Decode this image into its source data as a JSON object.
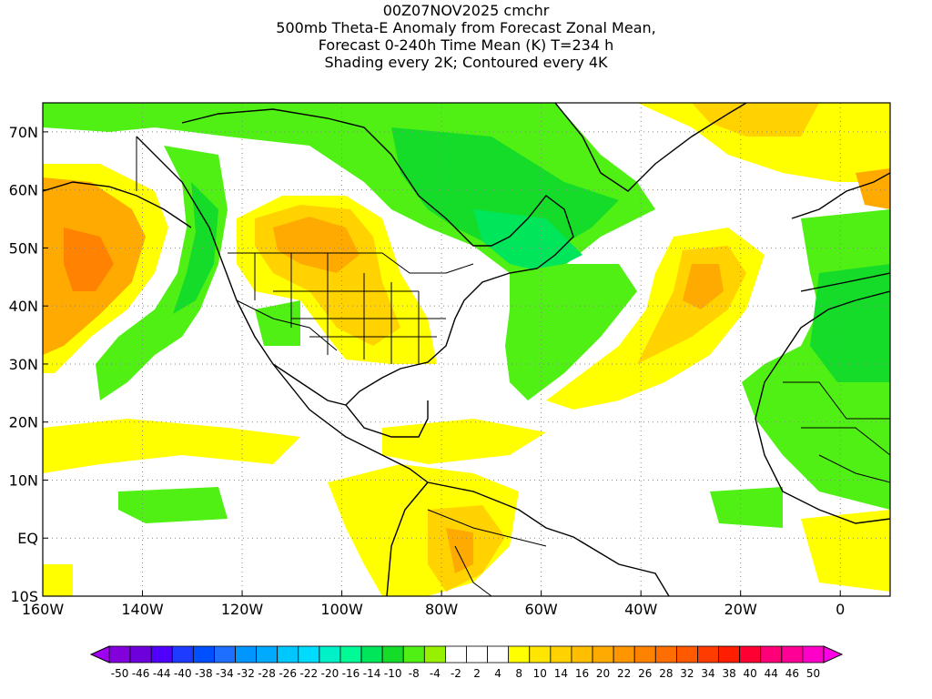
{
  "titles": {
    "line1": "00Z07NOV2025 cmchr",
    "line2": "500mb Theta-E Anomaly from Forecast Zonal Mean,",
    "line3": "Forecast 0-240h Time Mean (K) T=234 h",
    "line4": "Shading every 2K; Contoured every 4K"
  },
  "axes": {
    "lat_labels": [
      "70N",
      "60N",
      "50N",
      "40N",
      "30N",
      "20N",
      "10N",
      "EQ",
      "10S"
    ],
    "lat_values": [
      70,
      60,
      50,
      40,
      30,
      20,
      10,
      0,
      -10
    ],
    "lon_labels": [
      "160W",
      "140W",
      "120W",
      "100W",
      "80W",
      "60W",
      "40W",
      "20W",
      "0"
    ],
    "lon_values": [
      -160,
      -140,
      -120,
      -100,
      -80,
      -60,
      -40,
      -20,
      0
    ],
    "lon_range": [
      -160,
      10
    ],
    "lat_range": [
      -10,
      75
    ],
    "grid": "dotted"
  },
  "colorbar": {
    "labels": [
      "-50",
      "-46",
      "-44",
      "-40",
      "-38",
      "-34",
      "-32",
      "-28",
      "-26",
      "-22",
      "-20",
      "-16",
      "-14",
      "-10",
      "-8",
      "-4",
      "-2",
      "2",
      "4",
      "8",
      "10",
      "14",
      "16",
      "20",
      "22",
      "26",
      "28",
      "32",
      "34",
      "38",
      "40",
      "44",
      "46",
      "50"
    ],
    "colors": [
      "#a000f0",
      "#8200dc",
      "#6e00dc",
      "#5000ff",
      "#1e3cff",
      "#0050ff",
      "#1e6eff",
      "#0096ff",
      "#00aaff",
      "#00c8ff",
      "#00dcff",
      "#00f0c8",
      "#00fa96",
      "#00e65a",
      "#14dc28",
      "#50f014",
      "#96f000",
      "#ffffff",
      "#ffffff",
      "#ffffff",
      "#ffff00",
      "#ffe600",
      "#ffd200",
      "#ffbe00",
      "#ffaa00",
      "#ff9600",
      "#ff8200",
      "#ff6e00",
      "#ff5a00",
      "#ff3c00",
      "#ff1e00",
      "#ff0032",
      "#ff0078",
      "#ff0096",
      "#ff00c8",
      "#ff00e6"
    ]
  },
  "map_colors": {
    "green_light": "#96f000",
    "green": "#50f014",
    "green_med": "#14dc28",
    "teal": "#00e65a",
    "yellow": "#ffff00",
    "yellow2": "#ffe600",
    "orange_light": "#ffd200",
    "orange": "#ffaa00",
    "orange_dark": "#ff8200"
  }
}
